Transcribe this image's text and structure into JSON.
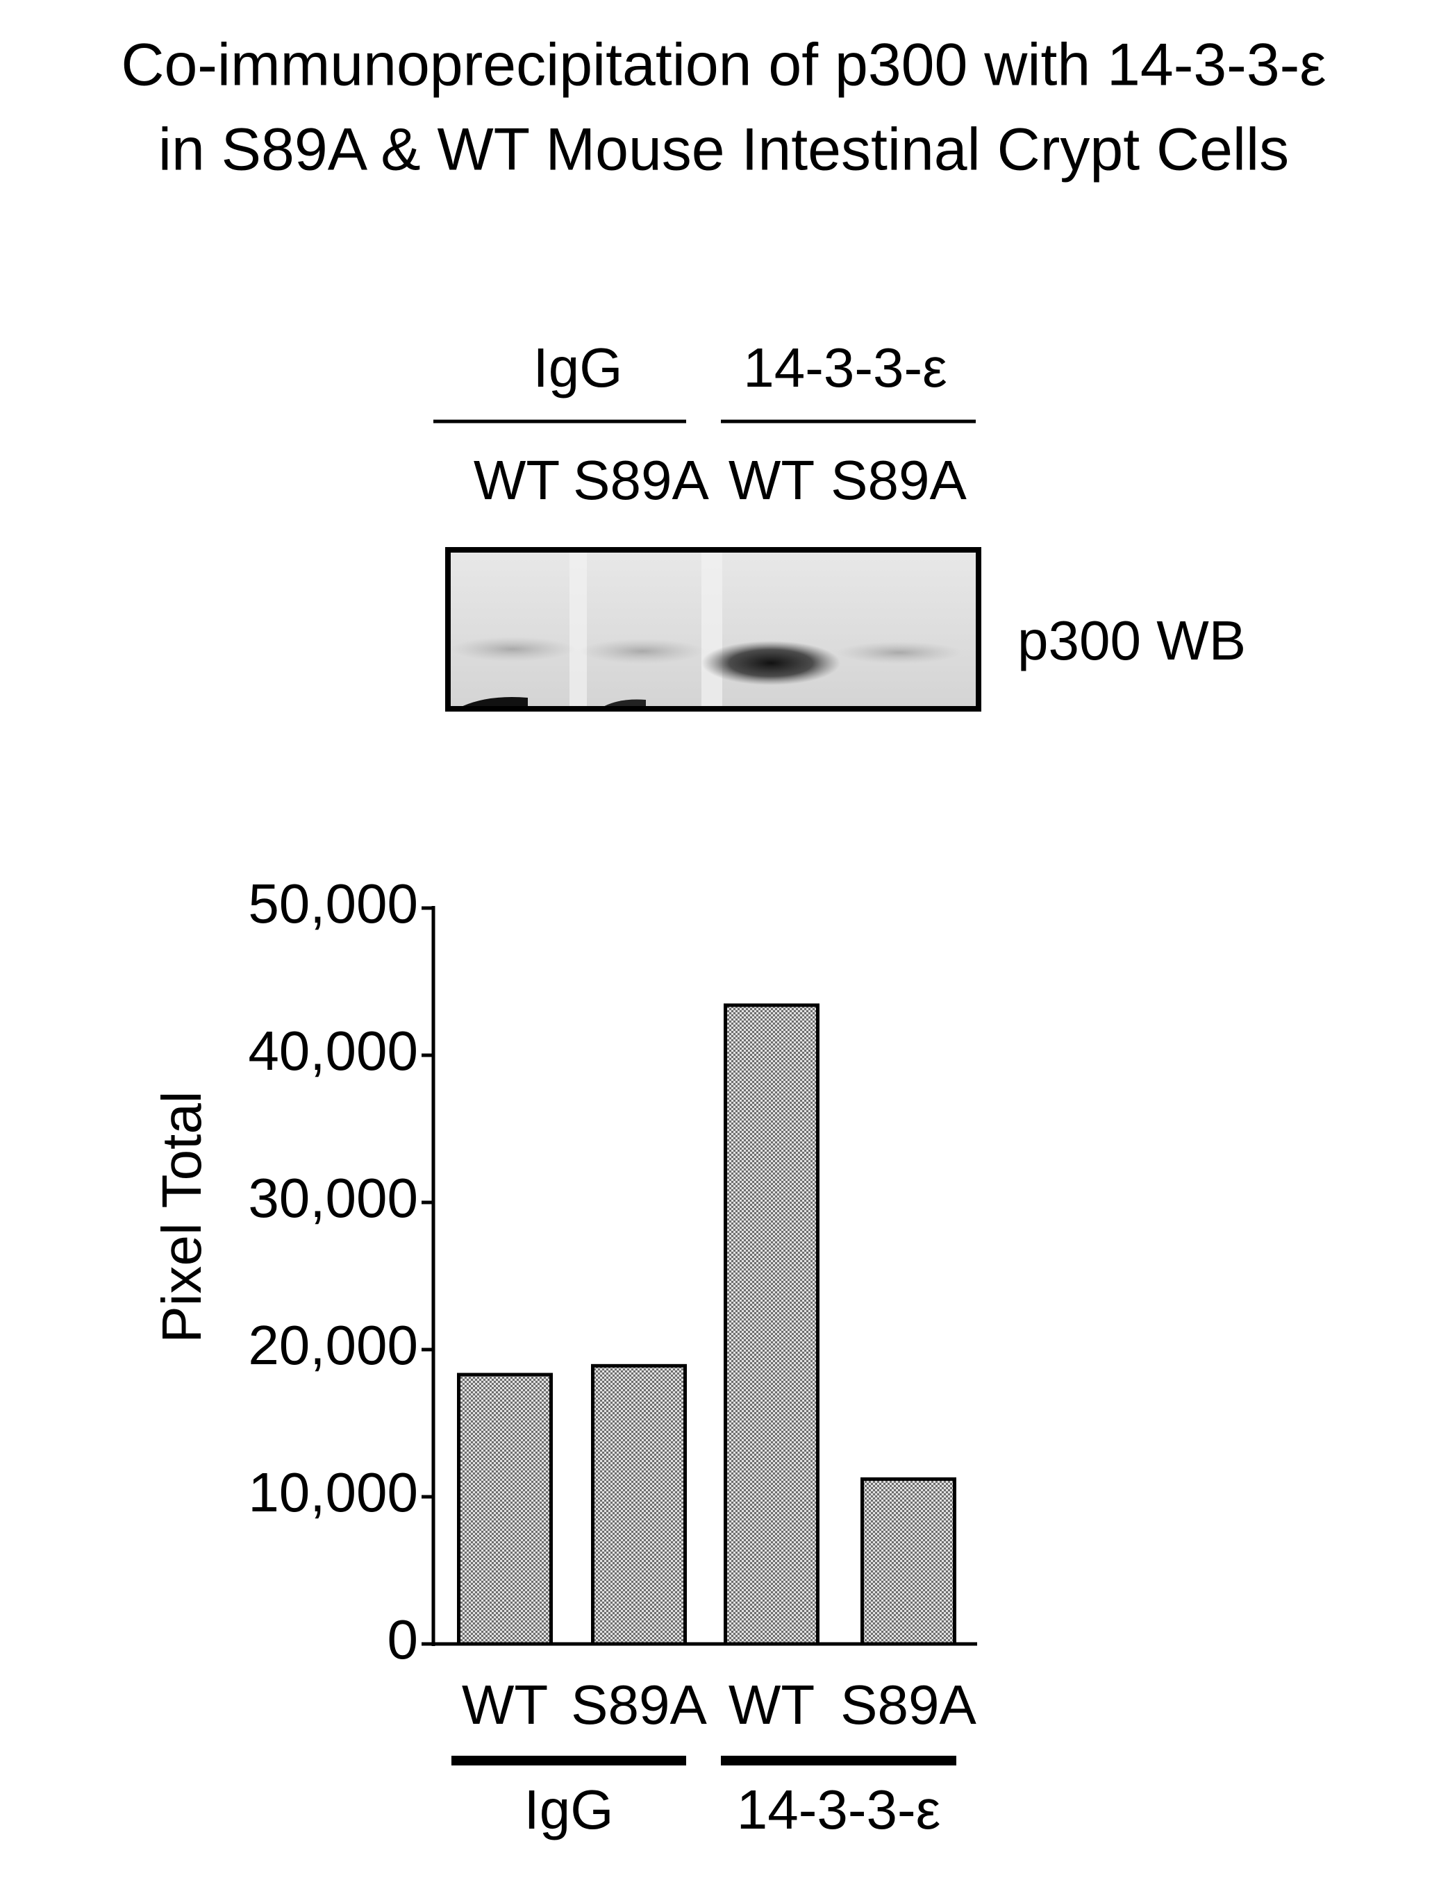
{
  "chart_data": {
    "type": "bar",
    "title": [
      "Co-immunoprecipitation of p300 with 14-3-3-ε",
      "in S89A & WT Mouse Intestinal Crypt Cells"
    ],
    "blot": {
      "groups": [
        "IgG",
        "14-3-3-ε"
      ],
      "lanes": [
        "WT",
        "S89A",
        "WT",
        "S89A"
      ],
      "label": "p300 WB"
    },
    "ylabel": "Pixel  Total",
    "categories": [
      "WT",
      "S89A",
      "WT",
      "S89A"
    ],
    "group_labels": [
      "IgG",
      "14-3-3-ε"
    ],
    "values": [
      18300,
      18900,
      43400,
      11200
    ],
    "color": "#6e6e6e",
    "ylim": [
      0,
      50000
    ],
    "yticks": [
      0,
      {
        "value": 10000,
        "label": "10,000"
      },
      {
        "value": 20000,
        "label": "20,000"
      },
      {
        "value": 30000,
        "label": "30,000"
      },
      {
        "value": 40000,
        "label": "40,000"
      },
      {
        "value": 50000,
        "label": "50,000"
      }
    ],
    "grid": false
  }
}
